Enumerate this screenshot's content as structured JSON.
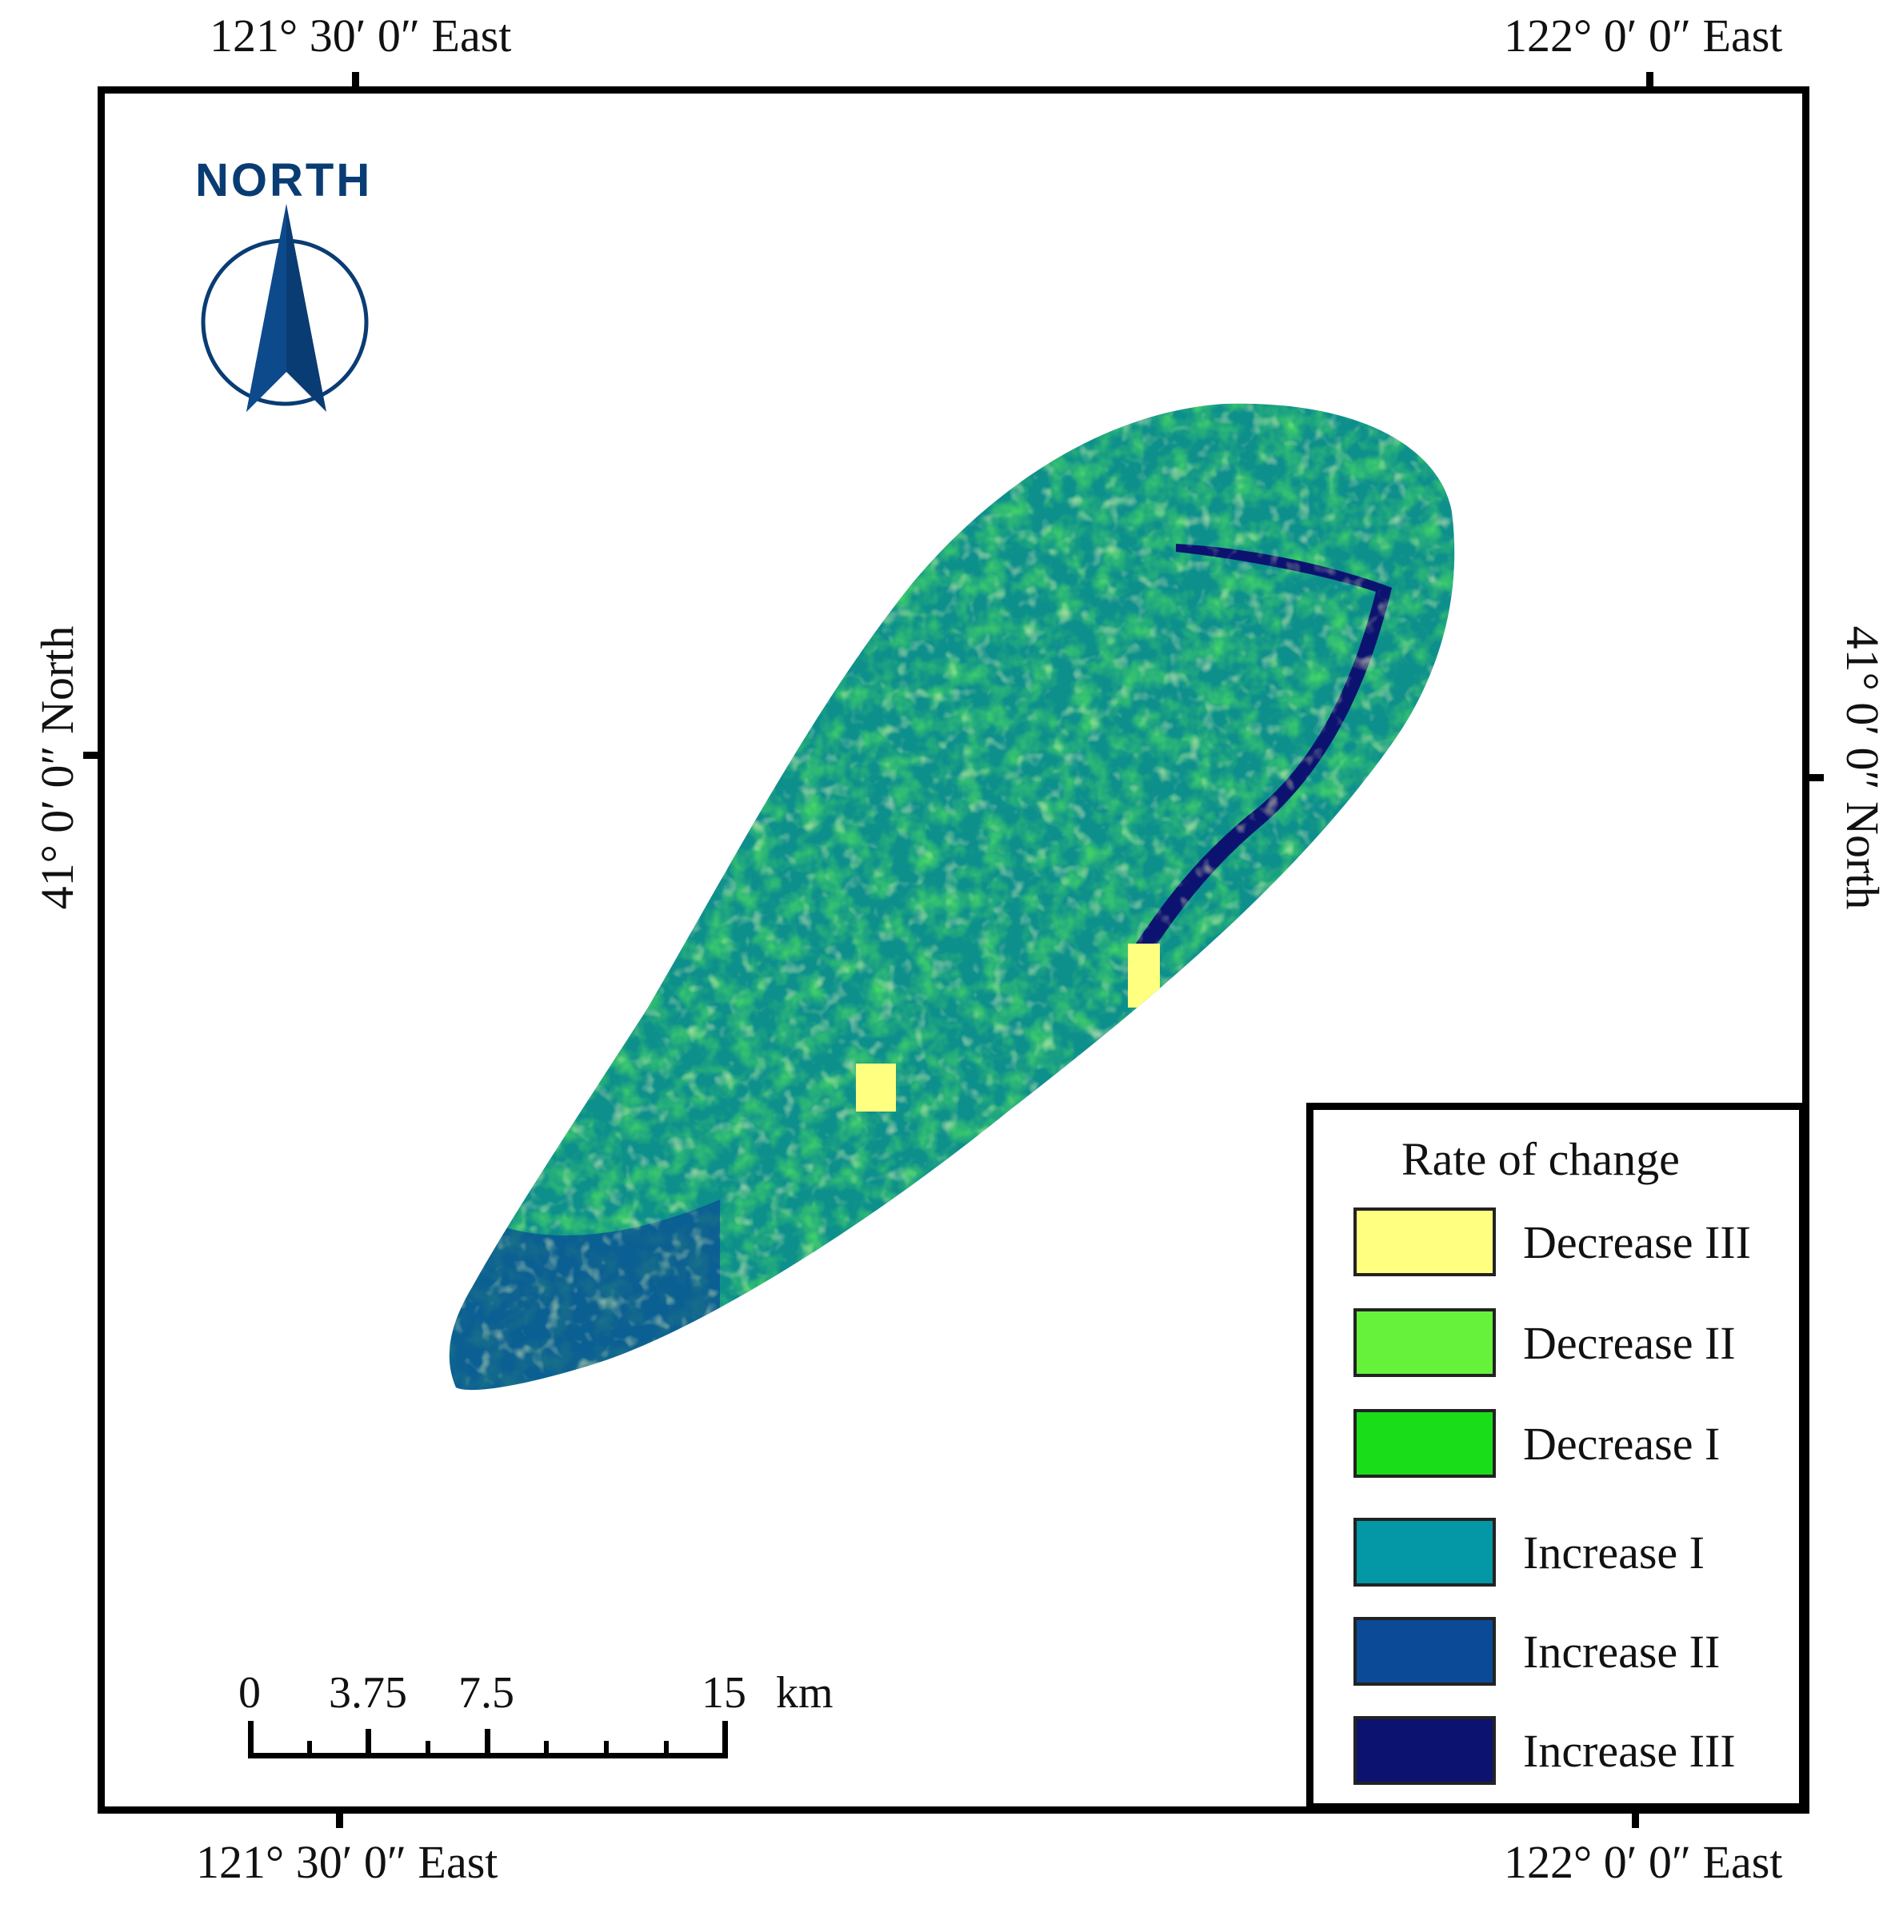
{
  "coordinates": {
    "top_left": "121° 30′ 0″ East",
    "top_right": "122° 0′ 0″ East",
    "bottom_left": "121° 30′ 0″ East",
    "bottom_right": "122° 0′ 0″ East",
    "left": "41° 0′ 0″ North",
    "right": "41° 0′ 0″ North"
  },
  "north": {
    "label": "NORTH",
    "color": "#0a3c74"
  },
  "legend": {
    "title": "Rate of change",
    "items": [
      {
        "label": "Decrease III",
        "color": "#ffff80"
      },
      {
        "label": "Decrease II",
        "color": "#66f23a"
      },
      {
        "label": "Decrease I",
        "color": "#19dd19"
      },
      {
        "label": "Increase I",
        "color": "#0497a6"
      },
      {
        "label": "Increase II",
        "color": "#0a4a96"
      },
      {
        "label": "Increase III",
        "color": "#0b1270"
      }
    ]
  },
  "scale": {
    "labels": [
      "0",
      "3.75",
      "7.5",
      "15"
    ],
    "unit": "km"
  }
}
